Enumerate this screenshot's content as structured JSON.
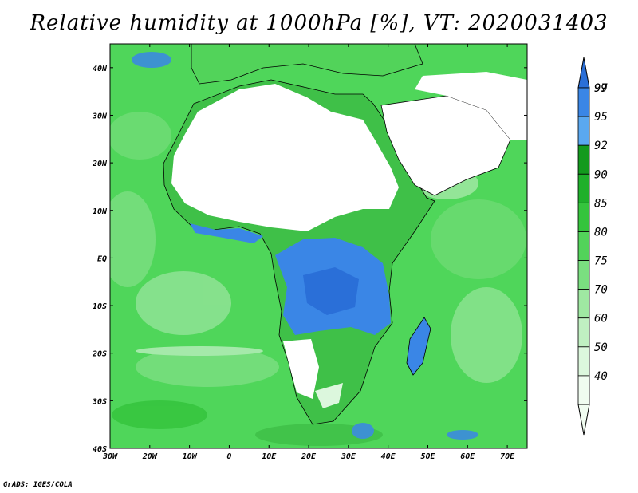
{
  "title": "Relative humidity at 1000hPa [%], VT: 2020031403",
  "credit": "GrADS: IGES/COLA",
  "map": {
    "lon_range": [
      -30,
      75
    ],
    "lat_range": [
      -40,
      45
    ],
    "lon_ticks": [
      {
        "value": -30,
        "label": "30W"
      },
      {
        "value": -20,
        "label": "20W"
      },
      {
        "value": -10,
        "label": "10W"
      },
      {
        "value": 0,
        "label": "0"
      },
      {
        "value": 10,
        "label": "10E"
      },
      {
        "value": 20,
        "label": "20E"
      },
      {
        "value": 30,
        "label": "30E"
      },
      {
        "value": 40,
        "label": "40E"
      },
      {
        "value": 50,
        "label": "50E"
      },
      {
        "value": 60,
        "label": "60E"
      },
      {
        "value": 70,
        "label": "70E"
      }
    ],
    "lat_ticks": [
      {
        "value": 40,
        "label": "40N"
      },
      {
        "value": 30,
        "label": "30N"
      },
      {
        "value": 20,
        "label": "20N"
      },
      {
        "value": 10,
        "label": "10N"
      },
      {
        "value": 0,
        "label": "EQ"
      },
      {
        "value": -10,
        "label": "10S"
      },
      {
        "value": -20,
        "label": "20S"
      },
      {
        "value": -30,
        "label": "30S"
      },
      {
        "value": -40,
        "label": "40S"
      }
    ],
    "ocean_color": "#4fd65a",
    "coast_color": "#000000"
  },
  "colorbar": {
    "levels": [
      {
        "label": "99",
        "color": "#2a6fd8"
      },
      {
        "label": "97",
        "color": "#3a86e6"
      },
      {
        "label": "95",
        "color": "#5aa8f0"
      },
      {
        "label": "92",
        "color": "#139a1e"
      },
      {
        "label": "90",
        "color": "#1fb02b"
      },
      {
        "label": "85",
        "color": "#35c43d"
      },
      {
        "label": "80",
        "color": "#52d35a"
      },
      {
        "label": "75",
        "color": "#7adf80"
      },
      {
        "label": "70",
        "color": "#9fe8a2"
      },
      {
        "label": "60",
        "color": "#c0f0c2"
      },
      {
        "label": "50",
        "color": "#dcf7dd"
      },
      {
        "label": "40",
        "color": "#f0fcf0"
      }
    ]
  }
}
